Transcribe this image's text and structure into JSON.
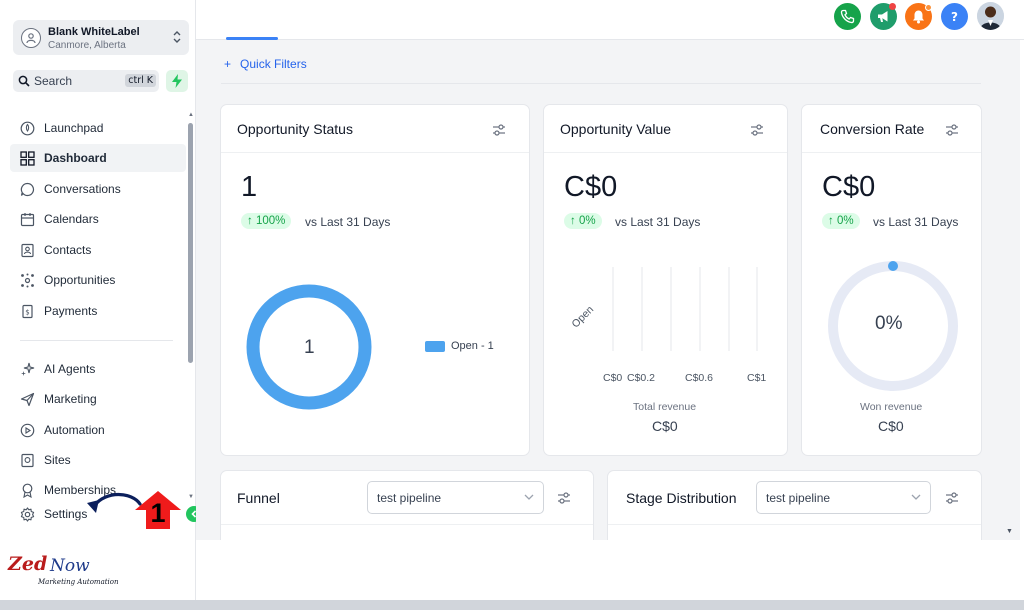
{
  "account": {
    "name": "Blank WhiteLabel",
    "location": "Canmore, Alberta"
  },
  "search": {
    "label": "Search",
    "shortcut": "ctrl K"
  },
  "sidebar": {
    "items": [
      {
        "label": "Launchpad",
        "icon": "rocket-icon"
      },
      {
        "label": "Dashboard",
        "icon": "grid-icon",
        "active": true
      },
      {
        "label": "Conversations",
        "icon": "chat-icon"
      },
      {
        "label": "Calendars",
        "icon": "calendar-icon"
      },
      {
        "label": "Contacts",
        "icon": "contacts-icon"
      },
      {
        "label": "Opportunities",
        "icon": "opportunities-icon"
      },
      {
        "label": "Payments",
        "icon": "payments-icon"
      },
      {
        "label": "AI Agents",
        "icon": "sparkle-icon"
      },
      {
        "label": "Marketing",
        "icon": "send-icon"
      },
      {
        "label": "Automation",
        "icon": "automation-icon"
      },
      {
        "label": "Sites",
        "icon": "sites-icon"
      },
      {
        "label": "Memberships",
        "icon": "award-icon"
      },
      {
        "label": "Settings",
        "icon": "gear-icon"
      }
    ]
  },
  "annotation": {
    "step": "1"
  },
  "logo": {
    "brand_a": "Zed",
    "brand_b": "Now",
    "tagline": "Marketing Automation"
  },
  "header": {
    "colors": {
      "phone": "#16a34a",
      "megaphone": "#1f9d6b",
      "bell": "#f97316",
      "help": "#3b82f6",
      "notify_dot": "#ef4444"
    }
  },
  "filters": {
    "label": "Quick Filters"
  },
  "cards": {
    "opportunity_status": {
      "title": "Opportunity Status",
      "value": "1",
      "change": "↑ 100%",
      "compare": "vs Last 31 Days",
      "donut_center": "1",
      "legend": "Open - 1",
      "accent": "#4da3ee"
    },
    "opportunity_value": {
      "title": "Opportunity Value",
      "value": "C$0",
      "change": "↑ 0%",
      "compare": "vs Last 31 Days",
      "category": "Open",
      "ticks": [
        "C$0",
        "C$0.2",
        "C$0.6",
        "C$1"
      ],
      "footer_label": "Total revenue",
      "footer_value": "C$0"
    },
    "conversion_rate": {
      "title": "Conversion Rate",
      "value": "C$0",
      "change": "↑ 0%",
      "compare": "vs Last 31 Days",
      "gauge_value": "0%",
      "gauge_fraction": 0,
      "footer_label": "Won revenue",
      "footer_value": "C$0"
    },
    "funnel": {
      "title": "Funnel",
      "pipeline": "test pipeline"
    },
    "stage_distribution": {
      "title": "Stage Distribution",
      "pipeline": "test pipeline"
    }
  }
}
